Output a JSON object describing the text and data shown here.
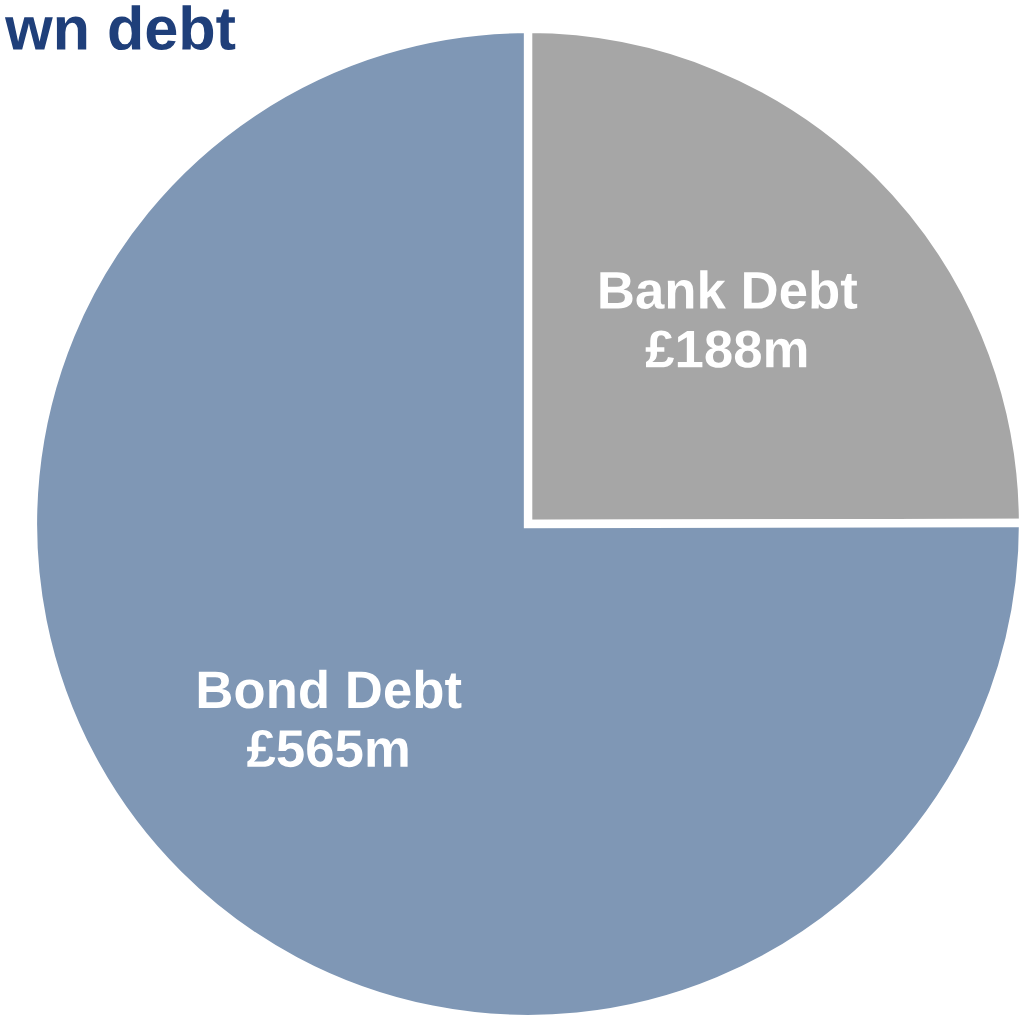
{
  "chart_data": {
    "type": "pie",
    "title": "wn debt",
    "categories": [
      "Bank Debt",
      "Bond Debt"
    ],
    "values": [
      188,
      565
    ],
    "colors": [
      "#a6a6a6",
      "#7f97b5"
    ],
    "value_labels": [
      "£188m",
      "£565m"
    ],
    "legend": false
  }
}
